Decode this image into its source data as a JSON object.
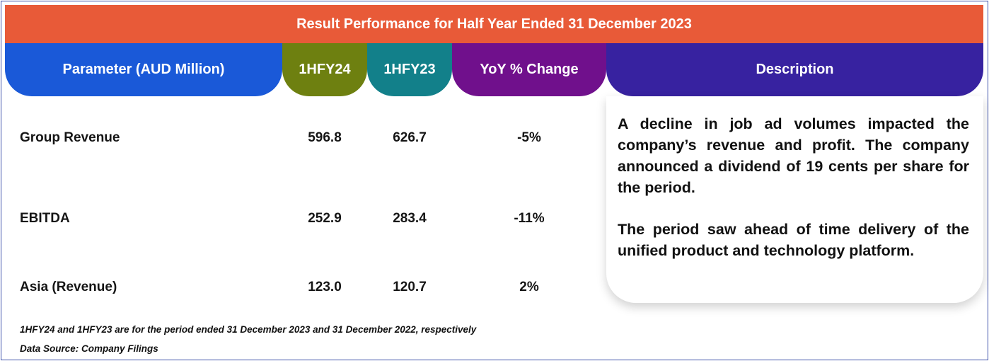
{
  "title": "Result Performance for Half Year Ended 31 December 2023",
  "headers": {
    "parameter": "Parameter (AUD Million)",
    "h1fy24": "1HFY24",
    "h1fy23": "1HFY23",
    "yoy": "YoY % Change",
    "description": "Description"
  },
  "rows": [
    {
      "parameter": "Group Revenue",
      "h1fy24": "596.8",
      "h1fy23": "626.7",
      "yoy": "-5%"
    },
    {
      "parameter": "EBITDA",
      "h1fy24": "252.9",
      "h1fy23": "283.4",
      "yoy": "-11%"
    },
    {
      "parameter": "Asia (Revenue)",
      "h1fy24": "123.0",
      "h1fy23": "120.7",
      "yoy": "2%"
    }
  ],
  "description": {
    "paragraph1": "A decline in job ad volumes impacted the company’s revenue and profit. The company announced a dividend of 19 cents per share for the period.",
    "paragraph2": "The period saw ahead of time delivery of the unified product and technology platform."
  },
  "footnotes": {
    "period_note": "1HFY24 and 1HFY23 are for the period ended 31 December 2023 and 31 December 2022, respectively",
    "source": "Data Source: Company Filings"
  },
  "colors": {
    "title_bar": "#e85a38",
    "parameter_header": "#1a59d8",
    "h1fy24_header": "#6e8010",
    "h1fy23_header": "#12808a",
    "yoy_header": "#70108c",
    "description_header": "#3722a0"
  }
}
